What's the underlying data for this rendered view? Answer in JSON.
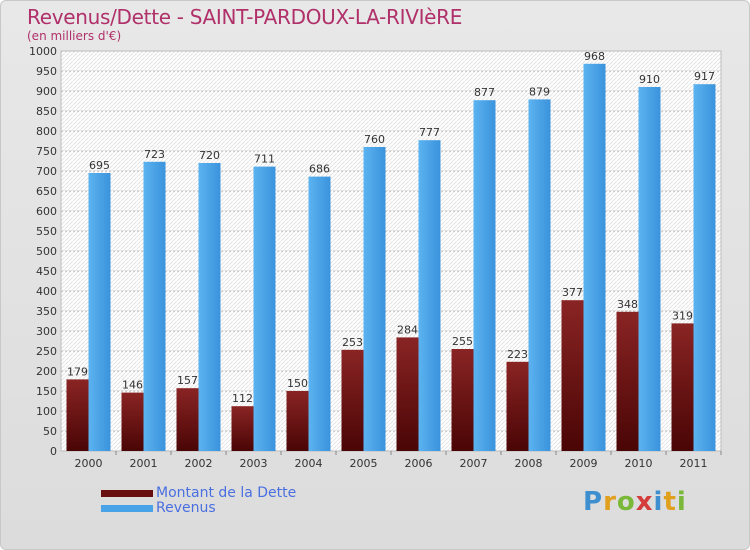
{
  "chart_data": {
    "type": "bar",
    "title": "Revenus/Dette - SAINT-PARDOUX-LA-RIVIèRE",
    "subtitle": "(en milliers d'€)",
    "categories": [
      "2000",
      "2001",
      "2002",
      "2003",
      "2004",
      "2005",
      "2006",
      "2007",
      "2008",
      "2009",
      "2010",
      "2011"
    ],
    "series": [
      {
        "name": "Montant de la Dette",
        "color": "#7a1515",
        "values": [
          179,
          146,
          157,
          112,
          150,
          253,
          284,
          255,
          223,
          377,
          348,
          319
        ]
      },
      {
        "name": "Revenus",
        "color": "#4aa3e6",
        "values": [
          695,
          723,
          720,
          711,
          686,
          760,
          777,
          877,
          879,
          968,
          910,
          917
        ]
      }
    ],
    "ylim": [
      0,
      1000
    ],
    "yticks": [
      0,
      50,
      100,
      150,
      200,
      250,
      300,
      350,
      400,
      450,
      500,
      550,
      600,
      650,
      700,
      750,
      800,
      850,
      900,
      950,
      1000
    ],
    "grid": true,
    "legend": "bottom-left"
  },
  "logo": {
    "letters": [
      "P",
      "r",
      "o",
      "x",
      "i",
      "t",
      "i"
    ],
    "colors": [
      "#3d8fd0",
      "#e0a01e",
      "#7ab83a",
      "#d43b3b",
      "#3d8fd0",
      "#e0a01e",
      "#7ab83a"
    ]
  }
}
